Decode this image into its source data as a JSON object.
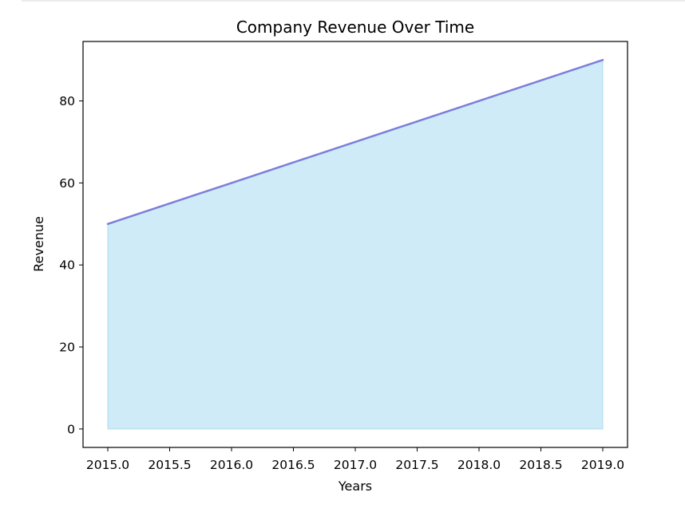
{
  "chart_data": {
    "type": "area",
    "title": "Company Revenue Over Time",
    "xlabel": "Years",
    "ylabel": "Revenue",
    "x": [
      2015,
      2016,
      2017,
      2018,
      2019
    ],
    "series": [
      {
        "values": [
          50,
          60,
          70,
          80,
          90
        ]
      }
    ],
    "xlim": [
      2014.8,
      2019.2
    ],
    "ylim": [
      -4.5,
      94.5
    ],
    "xticks": [
      2015.0,
      2015.5,
      2016.0,
      2016.5,
      2017.0,
      2017.5,
      2018.0,
      2018.5,
      2019.0
    ],
    "xtick_labels": [
      "2015.0",
      "2015.5",
      "2016.0",
      "2016.5",
      "2017.0",
      "2017.5",
      "2018.0",
      "2018.5",
      "2019.0"
    ],
    "yticks": [
      0,
      20,
      40,
      60,
      80
    ],
    "ytick_labels": [
      "0",
      "20",
      "40",
      "60",
      "80"
    ],
    "grid": false,
    "colors": {
      "fill": "#87ceeb",
      "line": "#7b7fd9"
    }
  }
}
